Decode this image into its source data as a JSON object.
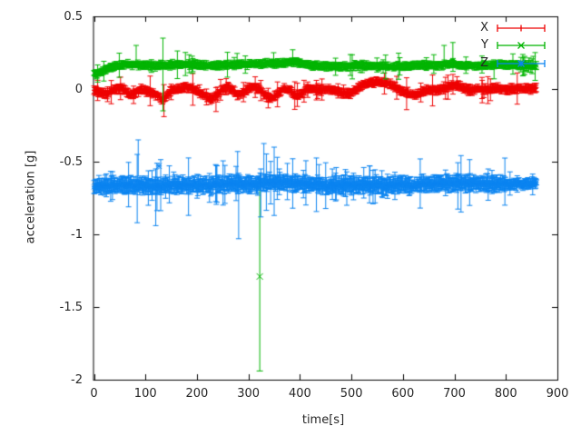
{
  "axes": {
    "xlabel": "time[s]",
    "ylabel": "acceleration [g]",
    "xlim": [
      0,
      900
    ],
    "ylim": [
      -2,
      0.5
    ],
    "x_ticks": [
      {
        "v": 0,
        "label": "0"
      },
      {
        "v": 100,
        "label": "100"
      },
      {
        "v": 200,
        "label": "200"
      },
      {
        "v": 300,
        "label": "300"
      },
      {
        "v": 400,
        "label": "400"
      },
      {
        "v": 500,
        "label": "500"
      },
      {
        "v": 600,
        "label": "600"
      },
      {
        "v": 700,
        "label": "700"
      },
      {
        "v": 800,
        "label": "800"
      },
      {
        "v": 900,
        "label": "900"
      }
    ],
    "y_ticks": [
      {
        "v": 0.5,
        "label": "0.5"
      },
      {
        "v": 0,
        "label": "0"
      },
      {
        "v": -0.5,
        "label": "-0.5"
      },
      {
        "v": -1,
        "label": "-1"
      },
      {
        "v": -1.5,
        "label": "-1.5"
      },
      {
        "v": -2,
        "label": "-2"
      }
    ],
    "border_color": "#000000",
    "grid": false
  },
  "legend": {
    "position": "top-right-inside",
    "entries": [
      "X",
      "Y",
      "Z"
    ]
  },
  "chart_data": {
    "type": "scatter",
    "style": "points-with-yerrorbars",
    "title": "",
    "xlabel": "time[s]",
    "ylabel": "acceleration [g]",
    "t_max": 860,
    "t_step": 1.2,
    "series": [
      {
        "name": "X",
        "color": "#ee0000",
        "marker": "plus",
        "summary": "x-axis acceleration, fluctuates around 0 g from t=0 to t=860 s",
        "mean": [
          [
            0,
            -0.005
          ],
          [
            15,
            -0.025
          ],
          [
            25,
            -0.035
          ],
          [
            40,
            0.0
          ],
          [
            55,
            0.005
          ],
          [
            70,
            -0.04
          ],
          [
            80,
            -0.03
          ],
          [
            90,
            -0.005
          ],
          [
            105,
            -0.015
          ],
          [
            118,
            -0.03
          ],
          [
            128,
            -0.06
          ],
          [
            134,
            -0.08
          ],
          [
            142,
            -0.035
          ],
          [
            152,
            -0.01
          ],
          [
            165,
            0.0
          ],
          [
            178,
            0.015
          ],
          [
            192,
            0.0
          ],
          [
            205,
            -0.02
          ],
          [
            218,
            -0.05
          ],
          [
            228,
            -0.068
          ],
          [
            238,
            -0.045
          ],
          [
            248,
            -0.005
          ],
          [
            258,
            0.012
          ],
          [
            268,
            -0.005
          ],
          [
            280,
            -0.04
          ],
          [
            290,
            -0.025
          ],
          [
            300,
            0.005
          ],
          [
            312,
            0.02
          ],
          [
            322,
            -0.005
          ],
          [
            333,
            -0.045
          ],
          [
            344,
            -0.065
          ],
          [
            354,
            -0.04
          ],
          [
            364,
            -0.012
          ],
          [
            374,
            0.005
          ],
          [
            383,
            -0.015
          ],
          [
            393,
            -0.05
          ],
          [
            403,
            -0.03
          ],
          [
            413,
            0.005
          ],
          [
            425,
            0.0
          ],
          [
            440,
            -0.008
          ],
          [
            455,
            -0.002
          ],
          [
            470,
            -0.012
          ],
          [
            483,
            -0.028
          ],
          [
            497,
            -0.032
          ],
          [
            512,
            0.0
          ],
          [
            525,
            0.03
          ],
          [
            540,
            0.048
          ],
          [
            556,
            0.045
          ],
          [
            570,
            0.04
          ],
          [
            582,
            0.02
          ],
          [
            596,
            -0.008
          ],
          [
            610,
            -0.03
          ],
          [
            622,
            -0.046
          ],
          [
            634,
            -0.028
          ],
          [
            646,
            -0.005
          ],
          [
            660,
            -0.008
          ],
          [
            672,
            -0.002
          ],
          [
            688,
            0.012
          ],
          [
            700,
            0.03
          ],
          [
            710,
            0.02
          ],
          [
            720,
            -0.002
          ],
          [
            735,
            -0.008
          ],
          [
            748,
            -0.002
          ],
          [
            760,
            0.0
          ],
          [
            772,
            -0.005
          ],
          [
            788,
            0.003
          ],
          [
            802,
            -0.006
          ],
          [
            818,
            0.0
          ],
          [
            835,
            0.004
          ],
          [
            860,
            0.0
          ]
        ],
        "noise": 0.013,
        "err": 0.022,
        "tail": 0.05,
        "spikes": [
          [
            77,
            -0.1,
            0.02
          ],
          [
            136,
            -0.19,
            0.03
          ],
          [
            237,
            -0.155,
            0.01
          ],
          [
            390,
            -0.14,
            0.05
          ],
          [
            395,
            -0.12,
            0.04
          ],
          [
            705,
            -0.01,
            0.085
          ],
          [
            754,
            -0.095,
            0.06
          ],
          [
            765,
            -0.1,
            0.085
          ],
          [
            770,
            -0.08,
            0.07
          ]
        ]
      },
      {
        "name": "Y",
        "color": "#00b400",
        "marker": "cross",
        "summary": "y-axis acceleration, ~0.16 g plateau, starts at 0.10 g, one outlier at t=322 s",
        "mean": [
          [
            0,
            0.1
          ],
          [
            8,
            0.105
          ],
          [
            16,
            0.12
          ],
          [
            26,
            0.14
          ],
          [
            40,
            0.155
          ],
          [
            55,
            0.165
          ],
          [
            70,
            0.17
          ],
          [
            85,
            0.17
          ],
          [
            100,
            0.165
          ],
          [
            115,
            0.158
          ],
          [
            130,
            0.162
          ],
          [
            148,
            0.165
          ],
          [
            168,
            0.17
          ],
          [
            188,
            0.168
          ],
          [
            208,
            0.165
          ],
          [
            228,
            0.16
          ],
          [
            248,
            0.165
          ],
          [
            268,
            0.166
          ],
          [
            288,
            0.17
          ],
          [
            308,
            0.172
          ],
          [
            328,
            0.175
          ],
          [
            348,
            0.178
          ],
          [
            368,
            0.175
          ],
          [
            382,
            0.19
          ],
          [
            392,
            0.185
          ],
          [
            408,
            0.172
          ],
          [
            428,
            0.162
          ],
          [
            448,
            0.156
          ],
          [
            468,
            0.155
          ],
          [
            488,
            0.158
          ],
          [
            508,
            0.16
          ],
          [
            528,
            0.16
          ],
          [
            548,
            0.16
          ],
          [
            568,
            0.156
          ],
          [
            588,
            0.155
          ],
          [
            608,
            0.16
          ],
          [
            628,
            0.164
          ],
          [
            648,
            0.165
          ],
          [
            668,
            0.165
          ],
          [
            688,
            0.17
          ],
          [
            708,
            0.166
          ],
          [
            728,
            0.161
          ],
          [
            748,
            0.16
          ],
          [
            768,
            0.164
          ],
          [
            788,
            0.17
          ],
          [
            808,
            0.166
          ],
          [
            828,
            0.161
          ],
          [
            845,
            0.162
          ],
          [
            860,
            0.156
          ]
        ],
        "noise": 0.011,
        "err": 0.02,
        "tail": 0.04,
        "spikes": [
          [
            82,
            0.17,
            0.3
          ],
          [
            134,
            -0.15,
            0.35
          ],
          [
            278,
            0.16,
            0.245
          ],
          [
            349,
            0.17,
            0.25
          ],
          [
            386,
            0.18,
            0.27
          ],
          [
            680,
            0.16,
            0.3
          ],
          [
            697,
            0.16,
            0.32
          ],
          [
            777,
            0.07,
            0.19
          ],
          [
            853,
            0.15,
            0.225
          ]
        ],
        "outliers": [
          {
            "t": 322,
            "v": -1.29,
            "lo": -1.94,
            "hi": -0.62
          }
        ]
      },
      {
        "name": "Z",
        "color": "#0b84f0",
        "marker": "star",
        "summary": "z-axis acceleration, noisy band around -0.66 g with large error bars",
        "mean": [
          [
            0,
            -0.675
          ],
          [
            20,
            -0.665
          ],
          [
            50,
            -0.66
          ],
          [
            80,
            -0.665
          ],
          [
            110,
            -0.668
          ],
          [
            140,
            -0.665
          ],
          [
            170,
            -0.66
          ],
          [
            200,
            -0.665
          ],
          [
            230,
            -0.66
          ],
          [
            260,
            -0.655
          ],
          [
            290,
            -0.658
          ],
          [
            320,
            -0.652
          ],
          [
            350,
            -0.64
          ],
          [
            380,
            -0.65
          ],
          [
            410,
            -0.655
          ],
          [
            440,
            -0.66
          ],
          [
            470,
            -0.664
          ],
          [
            500,
            -0.66
          ],
          [
            530,
            -0.66
          ],
          [
            560,
            -0.664
          ],
          [
            590,
            -0.66
          ],
          [
            620,
            -0.66
          ],
          [
            650,
            -0.655
          ],
          [
            680,
            -0.65
          ],
          [
            710,
            -0.65
          ],
          [
            740,
            -0.65
          ],
          [
            770,
            -0.652
          ],
          [
            800,
            -0.655
          ],
          [
            830,
            -0.65
          ],
          [
            860,
            -0.65
          ]
        ],
        "noise": 0.02,
        "err": 0.042,
        "tail": 0.09,
        "taper": {
          "t": 800,
          "factor": 0.6
        },
        "spikes": [
          [
            84,
            -0.92,
            -0.45
          ],
          [
            86,
            -0.6,
            -0.35
          ],
          [
            120,
            -0.94,
            -0.55
          ],
          [
            279,
            -0.72,
            -0.43
          ],
          [
            281,
            -1.03,
            -0.58
          ],
          [
            324,
            -0.88,
            -0.55
          ],
          [
            330,
            -0.7,
            -0.375
          ],
          [
            350,
            -0.87,
            -0.4
          ],
          [
            356,
            -0.76,
            -0.47
          ],
          [
            386,
            -0.82,
            -0.48
          ],
          [
            437,
            -0.72,
            -0.52
          ],
          [
            463,
            -0.76,
            -0.55
          ],
          [
            491,
            -0.8,
            -0.57
          ],
          [
            524,
            -0.75,
            -0.54
          ],
          [
            536,
            -0.73,
            -0.53
          ],
          [
            542,
            -0.79,
            -0.56
          ],
          [
            773,
            -0.72,
            -0.56
          ],
          [
            808,
            -0.73,
            -0.57
          ]
        ],
        "points": [
          {
            "t": 126,
            "v": -0.53
          }
        ]
      }
    ]
  }
}
